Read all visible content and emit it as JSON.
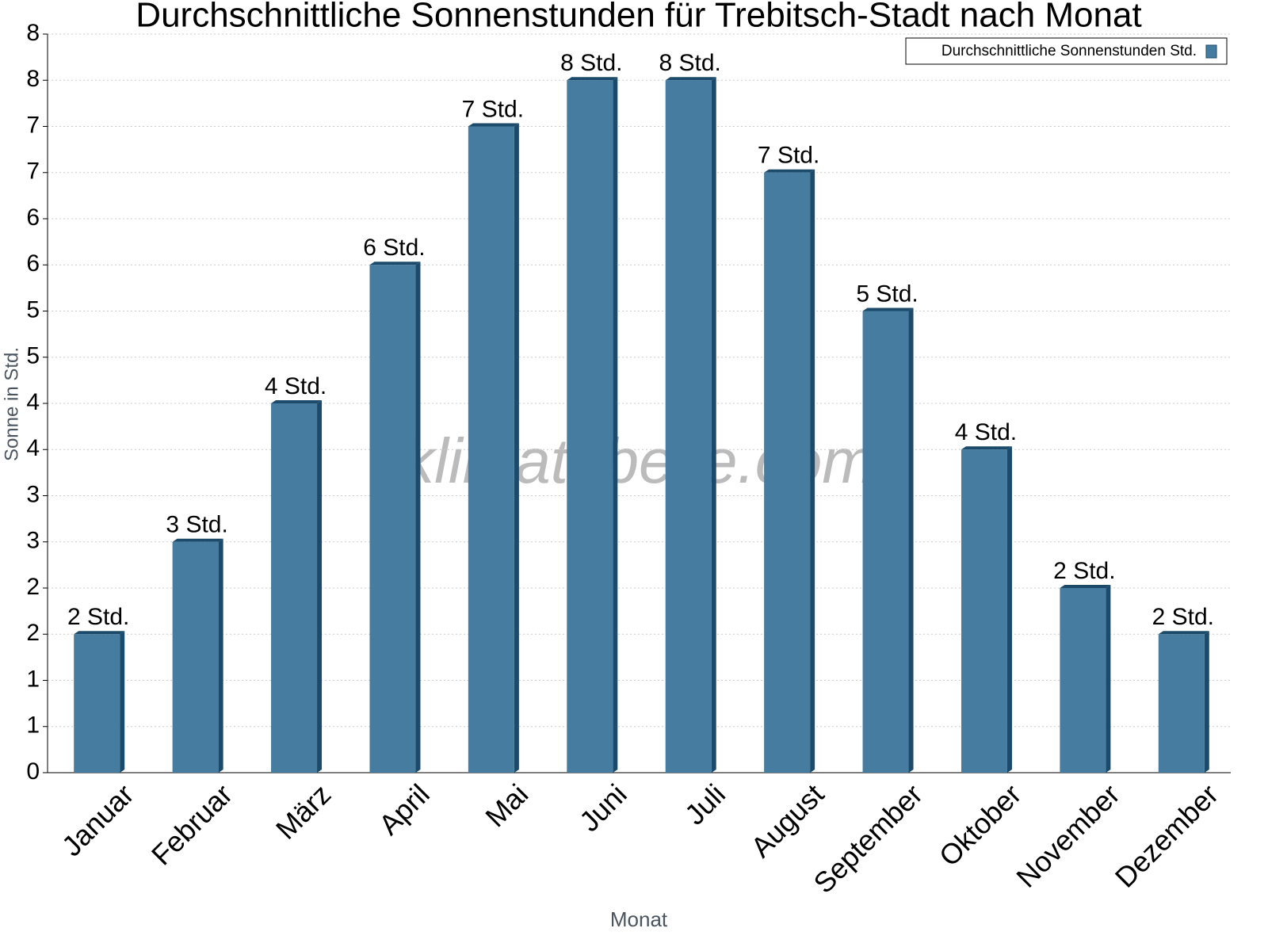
{
  "chart_data": {
    "type": "bar",
    "title": "Durchschnittliche Sonnenstunden für Trebitsch-Stadt nach Monat",
    "x_label": "Monat",
    "y_label": "Sonne in Std.",
    "watermark": "klimatabelle.com",
    "categories": [
      "Januar",
      "Februar",
      "März",
      "April",
      "Mai",
      "Juni",
      "Juli",
      "August",
      "September",
      "Oktober",
      "November",
      "Dezember"
    ],
    "series": [
      {
        "name": "Durchschnittliche Sonnenstunden Std.",
        "color": "#467c9f",
        "values": [
          1.5,
          2.5,
          4,
          5.5,
          7,
          7.5,
          7.5,
          6.5,
          5,
          3.5,
          2,
          1.5
        ],
        "value_labels": [
          "2 Std.",
          "3 Std.",
          "4 Std.",
          "6 Std.",
          "7 Std.",
          "8 Std.",
          "8 Std.",
          "7 Std.",
          "5 Std.",
          "4 Std.",
          "2 Std.",
          "2 Std."
        ]
      }
    ],
    "ylim": [
      0,
      8
    ],
    "yticks": [
      0,
      {
        "value": 0.5,
        "label": "1"
      },
      1,
      {
        "value": 1.5,
        "label": "2"
      },
      2,
      {
        "value": 2.5,
        "label": "3"
      },
      3,
      {
        "value": 3.5,
        "label": "4"
      },
      4,
      {
        "value": 4.5,
        "label": "5"
      },
      5,
      {
        "value": 5.5,
        "label": "6"
      },
      6,
      {
        "value": 6.5,
        "label": "7"
      },
      7,
      {
        "value": 7.5,
        "label": "8"
      },
      8
    ],
    "grid": true,
    "legend": "top-right"
  }
}
